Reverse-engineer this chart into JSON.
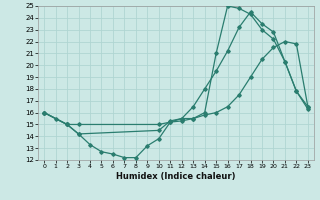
{
  "xlabel": "Humidex (Indice chaleur)",
  "xlim": [
    -0.5,
    23.5
  ],
  "ylim": [
    12,
    25
  ],
  "xticks": [
    0,
    1,
    2,
    3,
    4,
    5,
    6,
    7,
    8,
    9,
    10,
    11,
    12,
    13,
    14,
    15,
    16,
    17,
    18,
    19,
    20,
    21,
    22,
    23
  ],
  "yticks": [
    12,
    13,
    14,
    15,
    16,
    17,
    18,
    19,
    20,
    21,
    22,
    23,
    24,
    25
  ],
  "bg_color": "#cce8e5",
  "grid_color": "#b0d5d2",
  "line_color": "#2a7d6f",
  "line1_x": [
    0,
    1,
    2,
    3,
    4,
    5,
    6,
    7,
    8,
    9,
    10,
    11,
    12,
    13,
    14,
    15,
    16,
    17,
    18,
    19,
    20,
    21,
    22,
    23
  ],
  "line1_y": [
    16,
    15.5,
    15.0,
    14.2,
    13.3,
    12.7,
    12.5,
    12.2,
    12.2,
    13.2,
    13.8,
    15.2,
    15.5,
    15.5,
    16.0,
    21.0,
    25.0,
    24.8,
    24.3,
    23.0,
    22.2,
    20.3,
    17.8,
    16.3
  ],
  "line2_x": [
    0,
    2,
    3,
    10,
    11,
    12,
    13,
    14,
    15,
    16,
    17,
    18,
    19,
    20,
    21,
    22,
    23
  ],
  "line2_y": [
    16,
    15.0,
    15.0,
    15.0,
    15.2,
    15.3,
    15.5,
    15.8,
    16.0,
    16.5,
    17.5,
    19.0,
    20.5,
    21.5,
    22.0,
    21.8,
    16.5
  ],
  "line3_x": [
    0,
    2,
    3,
    10,
    11,
    12,
    13,
    14,
    15,
    16,
    17,
    18,
    19,
    20,
    21,
    22,
    23
  ],
  "line3_y": [
    16,
    15.0,
    14.2,
    14.5,
    15.3,
    15.5,
    16.5,
    18.0,
    19.5,
    21.2,
    23.2,
    24.5,
    23.5,
    22.8,
    20.3,
    17.8,
    16.5
  ]
}
